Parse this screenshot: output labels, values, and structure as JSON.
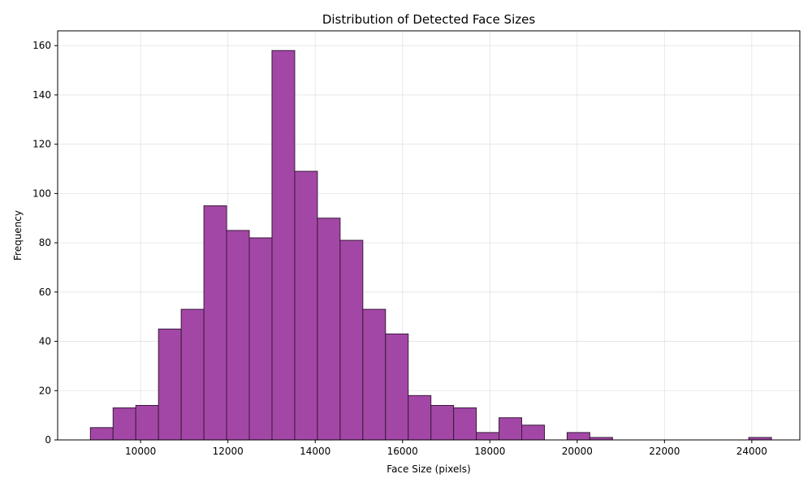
{
  "chart_data": {
    "type": "bar",
    "title": "Distribution of Detected Face Sizes",
    "xlabel": "Face Size (pixels)",
    "ylabel": "Frequency",
    "xlim": [
      8100,
      25100
    ],
    "ylim": [
      0,
      166
    ],
    "grid": true,
    "bar_color": "#a347a6",
    "edge_color": "#3a1a3c",
    "bin_start": 8850,
    "bin_width": 520,
    "values": [
      5,
      13,
      14,
      45,
      53,
      95,
      85,
      82,
      158,
      109,
      90,
      81,
      53,
      43,
      18,
      14,
      13,
      3,
      9,
      6,
      0,
      3,
      1,
      0,
      0,
      0,
      0,
      0,
      0,
      1
    ],
    "x_ticks": [
      10000,
      12000,
      14000,
      16000,
      18000,
      20000,
      22000,
      24000
    ],
    "y_ticks": [
      0,
      20,
      40,
      60,
      80,
      100,
      120,
      140,
      160
    ]
  }
}
